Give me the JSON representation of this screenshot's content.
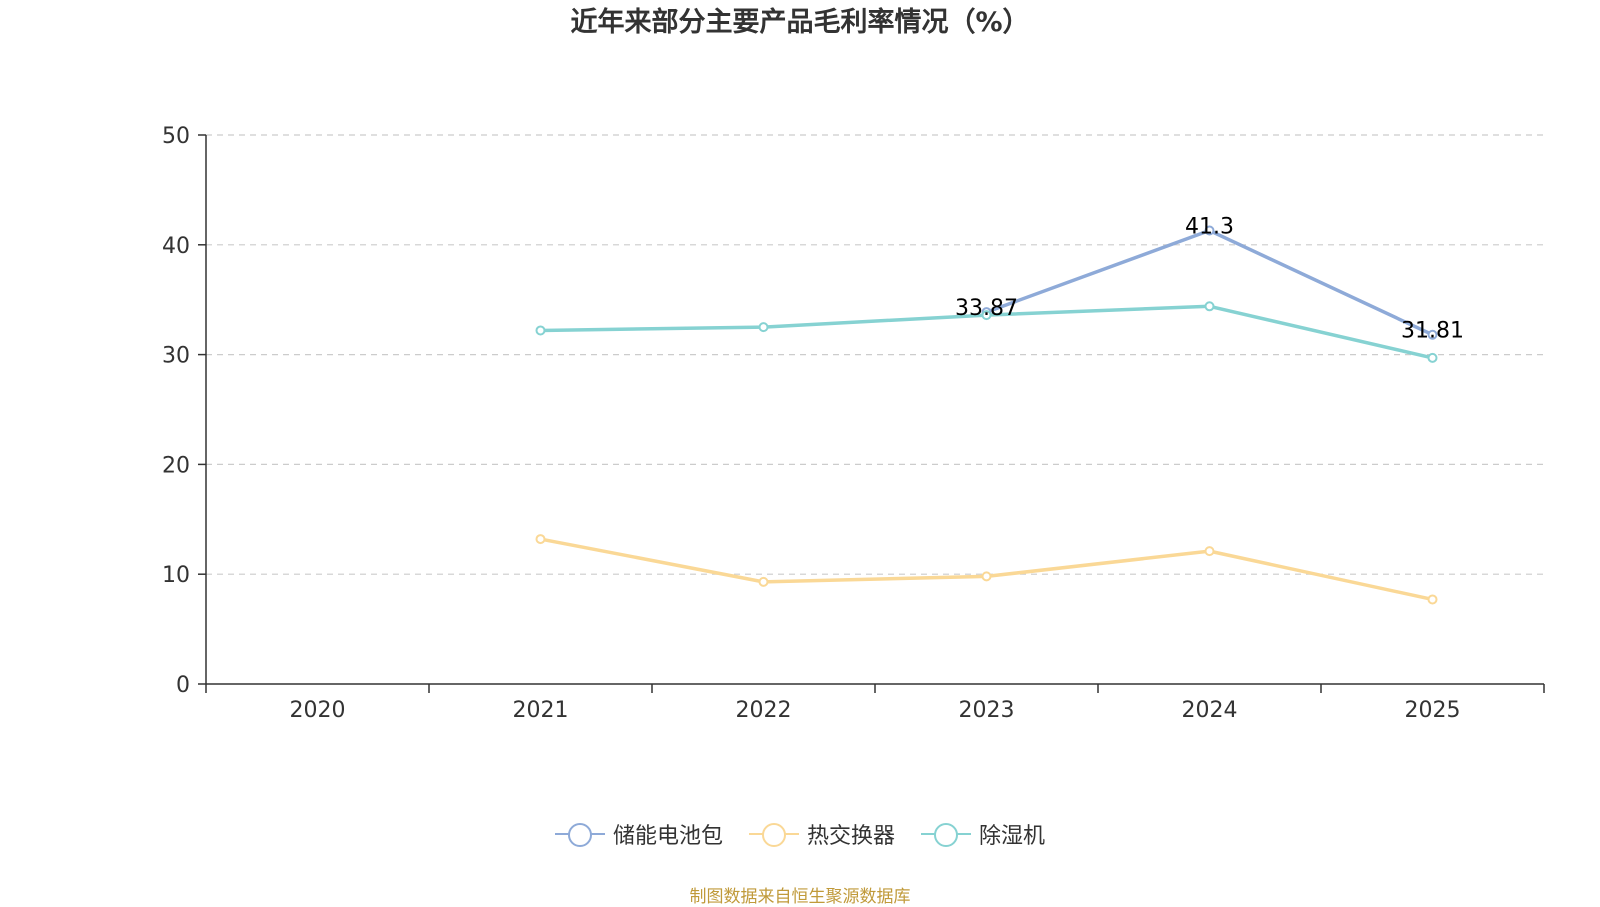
{
  "chart_data": {
    "type": "line",
    "title": "近年来部分主要产品毛利率情况（%）",
    "categories": [
      "2020",
      "2021",
      "2022",
      "2023",
      "2024",
      "2025"
    ],
    "ylim": [
      0,
      50
    ],
    "yticks": [
      0,
      10,
      20,
      30,
      40,
      50
    ],
    "grid": true,
    "legend_position": "bottom",
    "series": [
      {
        "name": "储能电池包",
        "color": "#8eaad8",
        "values": [
          null,
          null,
          null,
          33.87,
          41.3,
          31.81
        ],
        "labels": [
          null,
          null,
          null,
          "33.87",
          "41.3",
          "31.81"
        ]
      },
      {
        "name": "热交换器",
        "color": "#fad896",
        "values": [
          null,
          13.2,
          9.3,
          9.8,
          12.1,
          7.7
        ],
        "labels": [
          null,
          null,
          null,
          null,
          null,
          null
        ]
      },
      {
        "name": "除湿机",
        "color": "#86d2d2",
        "values": [
          null,
          32.2,
          32.5,
          33.6,
          34.4,
          29.7
        ],
        "labels": [
          null,
          null,
          null,
          null,
          null,
          null
        ]
      }
    ]
  },
  "source_note": "制图数据来自恒生聚源数据库"
}
